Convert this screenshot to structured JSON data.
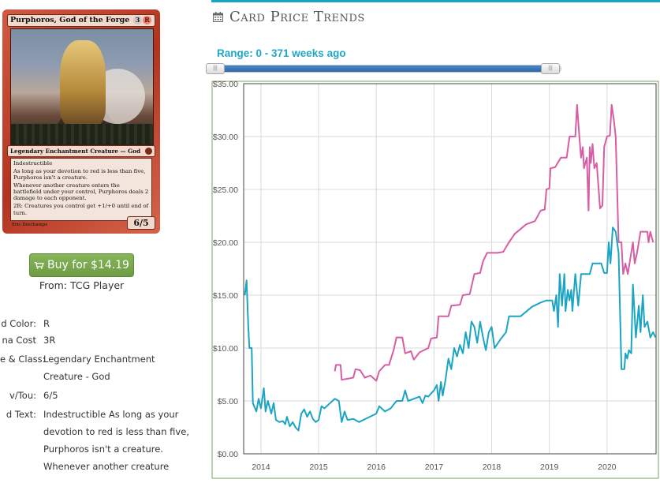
{
  "card": {
    "name": "Purphoros, God of the Forge",
    "cost": [
      "3",
      "R"
    ],
    "type_line": "Legendary Enchantment Creature — God",
    "text": [
      "Indestructible",
      "As long as your devotion to red is less than five, Purphoros isn't a creature.",
      "Whenever another creature enters the battlefield under your control, Purphoros deals 2 damage to each opponent.",
      "2R: Creatures you control get +1/+0 until end of turn."
    ],
    "power_toughness": "6/5",
    "artist": "Eric Deschamps"
  },
  "buy": {
    "label": "Buy for $14.19",
    "from": "From: TCG Player"
  },
  "details": [
    {
      "label": "d Color:",
      "value": [
        "R"
      ]
    },
    {
      "label": "na Cost",
      "value": [
        "3R"
      ]
    },
    {
      "label": "e & Class:",
      "value": [
        "Legendary Enchantment",
        "Creature - God"
      ]
    },
    {
      "label": "v/Tou:",
      "value": [
        "6/5"
      ]
    },
    {
      "label": "d Text:",
      "value": [
        "Indestructible As long as your",
        "devotion to red is less than five,",
        "Purphoros isn't a creature.",
        "Whenever another creature"
      ]
    }
  ],
  "panel": {
    "title": "Card Price Trends",
    "range_label": "Range: 0 - 371 weeks ago"
  },
  "colors": {
    "accent": "#16a6c8",
    "series_foil": "#d65ea3",
    "series_normal": "#1ba5c3",
    "buy_green": "#78a94e"
  },
  "chart_data": {
    "type": "line",
    "title": "",
    "xlabel": "",
    "ylabel": "",
    "ylim": [
      0,
      35
    ],
    "xlim": [
      2013.7,
      2020.85
    ],
    "yticks": [
      "$0.00",
      "$5.00",
      "$10.00",
      "$15.00",
      "$20.00",
      "$25.00",
      "$30.00",
      "$35.00"
    ],
    "ytick_values": [
      0,
      5,
      10,
      15,
      20,
      25,
      30,
      35
    ],
    "xticks": [
      "2014",
      "2015",
      "2016",
      "2017",
      "2018",
      "2019",
      "2020"
    ],
    "xtick_values": [
      2014,
      2015,
      2016,
      2017,
      2018,
      2019,
      2020
    ],
    "grid": true,
    "series": [
      {
        "values": [
          [
            2015.28,
            7.8
          ],
          [
            2015.3,
            8.4
          ],
          [
            2015.38,
            8.4
          ],
          [
            2015.4,
            7.0
          ],
          [
            2015.5,
            7.1
          ],
          [
            2015.6,
            7.2
          ],
          [
            2015.64,
            8.0
          ],
          [
            2015.72,
            7.9
          ],
          [
            2015.8,
            7.2
          ],
          [
            2015.9,
            7.4
          ],
          [
            2016.0,
            6.9
          ],
          [
            2016.05,
            7.8
          ],
          [
            2016.15,
            8.4
          ],
          [
            2016.22,
            8.4
          ],
          [
            2016.3,
            9.8
          ],
          [
            2016.35,
            11.0
          ],
          [
            2016.45,
            11.0
          ],
          [
            2016.5,
            9.5
          ],
          [
            2016.6,
            9.7
          ],
          [
            2016.65,
            8.9
          ],
          [
            2016.75,
            9.6
          ],
          [
            2016.9,
            10.0
          ],
          [
            2016.95,
            10.9
          ],
          [
            2017.05,
            11.0
          ],
          [
            2017.08,
            13.0
          ],
          [
            2017.25,
            13.0
          ],
          [
            2017.3,
            14.0
          ],
          [
            2017.45,
            14.1
          ],
          [
            2017.5,
            15.0
          ],
          [
            2017.62,
            15.1
          ],
          [
            2017.7,
            17.0
          ],
          [
            2017.8,
            17.1
          ],
          [
            2017.85,
            18.2
          ],
          [
            2017.92,
            19.0
          ],
          [
            2018.1,
            19.0
          ],
          [
            2018.2,
            19.1
          ],
          [
            2018.3,
            20.0
          ],
          [
            2018.4,
            20.8
          ],
          [
            2018.6,
            21.7
          ],
          [
            2018.75,
            22.0
          ],
          [
            2018.85,
            23.0
          ],
          [
            2018.92,
            23.1
          ],
          [
            2018.95,
            25.0
          ],
          [
            2019.0,
            25.1
          ],
          [
            2019.02,
            27.0
          ],
          [
            2019.1,
            27.1
          ],
          [
            2019.2,
            28.0
          ],
          [
            2019.3,
            28.0
          ],
          [
            2019.35,
            30.0
          ],
          [
            2019.45,
            30.0
          ],
          [
            2019.48,
            33.0
          ],
          [
            2019.52,
            30.0
          ],
          [
            2019.55,
            28.0
          ],
          [
            2019.58,
            29.0
          ],
          [
            2019.6,
            27.0
          ],
          [
            2019.65,
            28.0
          ],
          [
            2019.68,
            23.0
          ],
          [
            2019.7,
            29.0
          ],
          [
            2019.72,
            27.5
          ],
          [
            2019.75,
            29.3
          ],
          [
            2019.78,
            27.0
          ],
          [
            2019.82,
            27.5
          ],
          [
            2019.88,
            23.2
          ],
          [
            2019.92,
            23.5
          ],
          [
            2019.95,
            29.0
          ],
          [
            2020.0,
            30.0
          ],
          [
            2020.05,
            30.1
          ],
          [
            2020.08,
            33.0
          ],
          [
            2020.12,
            31.5
          ],
          [
            2020.15,
            30.0
          ],
          [
            2020.2,
            20.0
          ],
          [
            2020.25,
            20.0
          ],
          [
            2020.28,
            17.0
          ],
          [
            2020.32,
            18.0
          ],
          [
            2020.36,
            17.0
          ],
          [
            2020.42,
            19.0
          ],
          [
            2020.45,
            20.0
          ],
          [
            2020.48,
            18.0
          ],
          [
            2020.52,
            19.0
          ],
          [
            2020.58,
            21.0
          ],
          [
            2020.7,
            21.0
          ],
          [
            2020.72,
            20.0
          ],
          [
            2020.75,
            21.0
          ],
          [
            2020.8,
            20.0
          ]
        ]
      },
      {
        "values": [
          [
            2013.72,
            15.0
          ],
          [
            2013.75,
            16.4
          ],
          [
            2013.78,
            12.0
          ],
          [
            2013.8,
            10.0
          ],
          [
            2013.84,
            10.0
          ],
          [
            2013.86,
            4.8
          ],
          [
            2013.92,
            4.0
          ],
          [
            2013.96,
            5.2
          ],
          [
            2014.0,
            4.3
          ],
          [
            2014.05,
            6.2
          ],
          [
            2014.08,
            4.0
          ],
          [
            2014.12,
            5.0
          ],
          [
            2014.18,
            3.8
          ],
          [
            2014.22,
            4.8
          ],
          [
            2014.26,
            3.2
          ],
          [
            2014.32,
            3.0
          ],
          [
            2014.38,
            3.1
          ],
          [
            2014.42,
            2.8
          ],
          [
            2014.45,
            3.5
          ],
          [
            2014.5,
            2.6
          ],
          [
            2014.55,
            3.0
          ],
          [
            2014.6,
            2.5
          ],
          [
            2014.65,
            2.2
          ],
          [
            2014.7,
            3.8
          ],
          [
            2014.75,
            4.2
          ],
          [
            2014.8,
            3.5
          ],
          [
            2014.85,
            4.0
          ],
          [
            2014.9,
            3.3
          ],
          [
            2014.95,
            3.0
          ],
          [
            2015.0,
            3.2
          ],
          [
            2015.05,
            4.5
          ],
          [
            2015.1,
            4.3
          ],
          [
            2015.2,
            4.8
          ],
          [
            2015.28,
            5.2
          ],
          [
            2015.35,
            5.0
          ],
          [
            2015.4,
            3.0
          ],
          [
            2015.45,
            4.0
          ],
          [
            2015.5,
            3.2
          ],
          [
            2015.6,
            3.3
          ],
          [
            2015.7,
            3.0
          ],
          [
            2015.85,
            3.4
          ],
          [
            2016.0,
            3.8
          ],
          [
            2016.05,
            4.5
          ],
          [
            2016.15,
            4.0
          ],
          [
            2016.25,
            4.3
          ],
          [
            2016.35,
            5.0
          ],
          [
            2016.45,
            5.0
          ],
          [
            2016.5,
            6.0
          ],
          [
            2016.55,
            5.0
          ],
          [
            2016.65,
            5.2
          ],
          [
            2016.75,
            5.4
          ],
          [
            2016.8,
            4.8
          ],
          [
            2016.85,
            5.5
          ],
          [
            2016.9,
            5.4
          ],
          [
            2017.0,
            6.0
          ],
          [
            2017.05,
            6.5
          ],
          [
            2017.08,
            5.0
          ],
          [
            2017.12,
            6.8
          ],
          [
            2017.15,
            5.5
          ],
          [
            2017.2,
            7.0
          ],
          [
            2017.25,
            9.0
          ],
          [
            2017.3,
            8.0
          ],
          [
            2017.35,
            10.0
          ],
          [
            2017.4,
            9.2
          ],
          [
            2017.45,
            10.3
          ],
          [
            2017.5,
            9.5
          ],
          [
            2017.55,
            11.5
          ],
          [
            2017.6,
            10.0
          ],
          [
            2017.65,
            12.5
          ],
          [
            2017.7,
            12.0
          ],
          [
            2017.75,
            10.5
          ],
          [
            2017.8,
            12.5
          ],
          [
            2017.85,
            11.0
          ],
          [
            2017.9,
            9.8
          ],
          [
            2017.95,
            11.5
          ],
          [
            2018.0,
            12.0
          ],
          [
            2018.05,
            10.0
          ],
          [
            2018.15,
            10.8
          ],
          [
            2018.25,
            11.5
          ],
          [
            2018.3,
            13.0
          ],
          [
            2018.5,
            13.0
          ],
          [
            2018.7,
            13.9
          ],
          [
            2018.85,
            14.3
          ],
          [
            2018.9,
            14.4
          ],
          [
            2018.95,
            14.5
          ],
          [
            2019.05,
            14.5
          ],
          [
            2019.08,
            13.5
          ],
          [
            2019.12,
            15.0
          ],
          [
            2019.15,
            12.0
          ],
          [
            2019.18,
            17.0
          ],
          [
            2019.22,
            14.0
          ],
          [
            2019.26,
            17.0
          ],
          [
            2019.28,
            13.5
          ],
          [
            2019.32,
            15.5
          ],
          [
            2019.35,
            14.5
          ],
          [
            2019.38,
            15.5
          ],
          [
            2019.4,
            13.5
          ],
          [
            2019.45,
            17.0
          ],
          [
            2019.5,
            14.0
          ],
          [
            2019.55,
            17.0
          ],
          [
            2019.7,
            17.0
          ],
          [
            2019.75,
            18.0
          ],
          [
            2019.9,
            18.0
          ],
          [
            2019.95,
            17.1
          ],
          [
            2020.0,
            17.1
          ],
          [
            2020.03,
            20.0
          ],
          [
            2020.06,
            18.0
          ],
          [
            2020.1,
            21.4
          ],
          [
            2020.15,
            21.0
          ],
          [
            2020.2,
            19.0
          ],
          [
            2020.25,
            8.0
          ],
          [
            2020.3,
            8.0
          ],
          [
            2020.32,
            9.5
          ],
          [
            2020.35,
            9.0
          ],
          [
            2020.38,
            9.8
          ],
          [
            2020.42,
            9.5
          ],
          [
            2020.45,
            16.0
          ],
          [
            2020.5,
            11.0
          ],
          [
            2020.55,
            14.0
          ],
          [
            2020.58,
            11.5
          ],
          [
            2020.62,
            15.0
          ],
          [
            2020.65,
            12.0
          ],
          [
            2020.7,
            12.5
          ],
          [
            2020.75,
            11.0
          ],
          [
            2020.8,
            11.5
          ],
          [
            2020.84,
            11.0
          ]
        ]
      }
    ]
  }
}
